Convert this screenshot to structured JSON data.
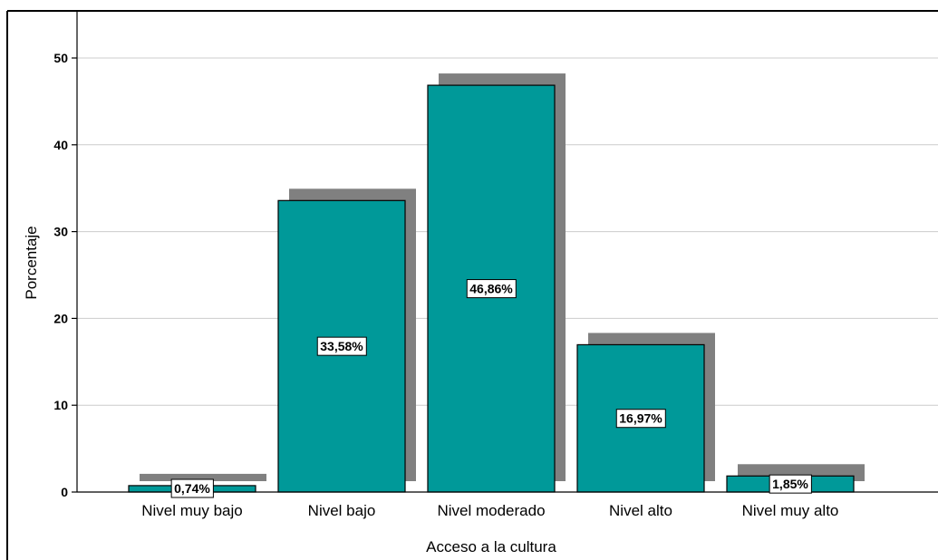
{
  "chart_data": {
    "type": "bar",
    "title": "",
    "xlabel": "Acceso a la cultura",
    "ylabel": "Porcentaje",
    "categories": [
      "Nivel muy bajo",
      "Nivel bajo",
      "Nivel moderado",
      "Nivel alto",
      "Nivel muy alto"
    ],
    "values": [
      0.74,
      33.58,
      46.86,
      16.97,
      1.85
    ],
    "data_labels": [
      "0,74%",
      "33,58%",
      "46,86%",
      "16,97%",
      "1,85%"
    ],
    "y_ticks": [
      "0",
      "10",
      "20",
      "30",
      "40",
      "50"
    ],
    "ylim": [
      0,
      55
    ],
    "grid": true,
    "legend": "none",
    "bar_color": "#009999",
    "shadow_color": "#808080"
  }
}
